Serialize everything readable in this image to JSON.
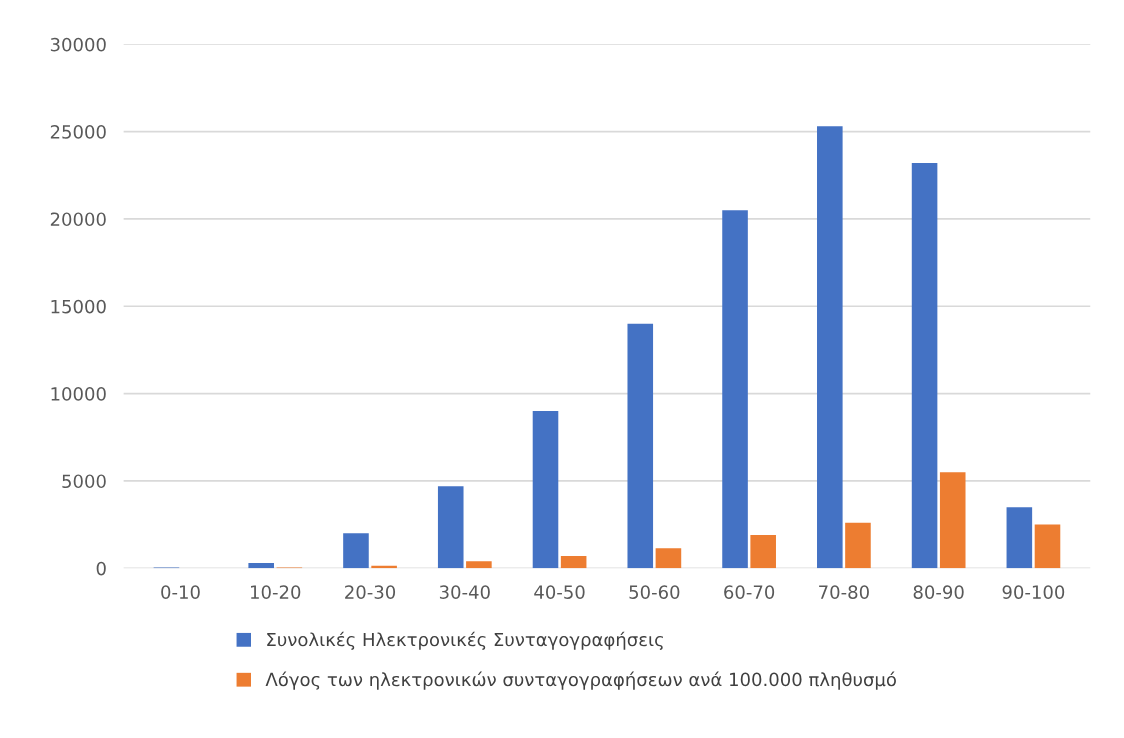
{
  "chart_data": {
    "type": "bar",
    "categories": [
      "0-10",
      "10-20",
      "20-30",
      "30-40",
      "40-50",
      "50-60",
      "60-70",
      "70-80",
      "80-90",
      "90-100"
    ],
    "series": [
      {
        "name": "Συνολικές Ηλεκτρονικές Συνταγογραφήσεις",
        "color": "#4472c4",
        "values": [
          50,
          300,
          2000,
          4700,
          9000,
          14000,
          20500,
          25300,
          23200,
          3500
        ]
      },
      {
        "name": "Λόγος των ηλεκτρονικών συνταγογραφήσεων ανά 100.000 πληθυσμό",
        "color": "#ed7d31",
        "values": [
          null,
          50,
          150,
          400,
          700,
          1150,
          1900,
          2600,
          5500,
          2500
        ]
      }
    ],
    "ylim": [
      0,
      30000
    ],
    "yticks": [
      0,
      5000,
      10000,
      15000,
      20000,
      25000,
      30000
    ],
    "grid": "y",
    "legend": "bottom"
  }
}
